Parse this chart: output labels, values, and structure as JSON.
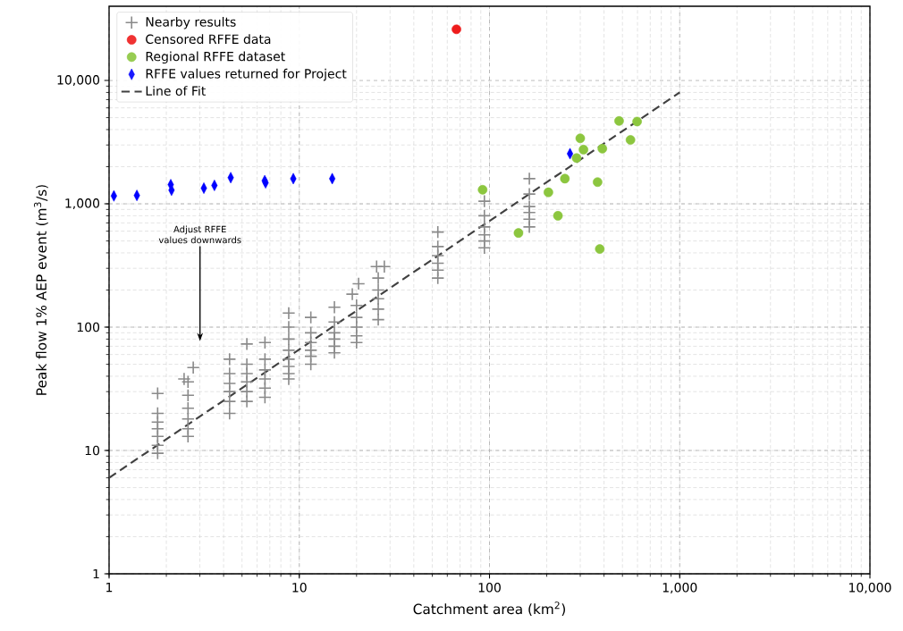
{
  "chart_data": {
    "type": "scatter",
    "xlabel": "Catchment area (km$^{2}$)",
    "ylabel": "Peak flow 1% AEP event (m$^{3}$/s)",
    "log": "xy",
    "grid": true,
    "legend": "top left",
    "xlim": [
      1,
      10000
    ],
    "ylim": [
      1,
      40000
    ],
    "xticks": [
      {
        "value": 1,
        "label": "1"
      },
      {
        "value": 10,
        "label": "10"
      },
      {
        "value": 100,
        "label": "100"
      },
      {
        "value": 1000,
        "label": "1,000"
      },
      {
        "value": 10000,
        "label": "10,000"
      }
    ],
    "yticks": [
      {
        "value": 1,
        "label": "1"
      },
      {
        "value": 10,
        "label": "10"
      },
      {
        "value": 100,
        "label": "100"
      },
      {
        "value": 1000,
        "label": "1,000"
      },
      {
        "value": 10000,
        "label": "10,000"
      }
    ],
    "annotations": [
      "Adjust RFFE values downwards"
    ],
    "series": [
      {
        "name": "Nearby results",
        "color": "#8a8a8a",
        "marker": "cross",
        "x": [
          1.8,
          1.8,
          1.8,
          1.8,
          1.8,
          1.8,
          1.8,
          2.77,
          2.48,
          2.6,
          2.6,
          2.6,
          2.6,
          2.6,
          2.6,
          4.3,
          4.3,
          4.3,
          4.3,
          4.3,
          4.3,
          5.3,
          5.3,
          5.3,
          5.3,
          5.3,
          5.3,
          6.6,
          6.6,
          6.6,
          6.6,
          6.6,
          6.6,
          8.8,
          8.8,
          8.8,
          8.8,
          8.8,
          8.8,
          8.8,
          8.8,
          11.5,
          11.5,
          11.5,
          11.5,
          11.5,
          11.5,
          15.3,
          15.3,
          15.3,
          15.3,
          15.3,
          15.3,
          19,
          20.5,
          20,
          20,
          20,
          20,
          20,
          25.5,
          28,
          26,
          26,
          26,
          26,
          26,
          53.5,
          53.5,
          53.5,
          53.5,
          53.5,
          53.5,
          94,
          94,
          94,
          94,
          94,
          94,
          162,
          162,
          162,
          162,
          162,
          162
        ],
        "values": [
          29,
          20,
          17,
          15,
          13,
          11,
          9.5,
          47,
          38,
          36,
          28,
          22,
          18,
          15,
          13,
          55,
          42,
          35,
          30,
          25,
          20,
          73,
          50,
          42,
          36,
          30,
          25,
          75,
          55,
          45,
          38,
          32,
          27,
          130,
          100,
          80,
          65,
          55,
          48,
          42,
          38,
          120,
          90,
          75,
          65,
          58,
          50,
          145,
          110,
          90,
          80,
          70,
          62,
          185,
          225,
          150,
          120,
          100,
          85,
          75,
          310,
          310,
          250,
          200,
          170,
          140,
          115,
          590,
          450,
          380,
          330,
          290,
          250,
          1050,
          800,
          650,
          560,
          500,
          440,
          1600,
          1200,
          950,
          850,
          750,
          650
        ]
      },
      {
        "name": "Censored RFFE data",
        "color": "#ee1c1c",
        "marker": "circle",
        "x": [
          67
        ],
        "values": [
          26000
        ]
      },
      {
        "name": "Regional RFFE dataset",
        "color": "#8cc63f",
        "marker": "circle",
        "x": [
          92,
          142,
          204,
          229,
          249,
          287,
          300,
          312,
          370,
          380,
          392,
          480,
          551,
          597
        ],
        "values": [
          1300,
          580,
          1240,
          800,
          1600,
          2350,
          3400,
          2750,
          1500,
          430,
          2800,
          4700,
          3300,
          4650
        ]
      },
      {
        "name": "RFFE values returned for Project",
        "color": "#0000ff",
        "marker": "diamond",
        "x": [
          1.06,
          1.4,
          2.11,
          2.13,
          3.15,
          3.58,
          4.36,
          6.58,
          6.65,
          9.3,
          14.9,
          265
        ],
        "values": [
          1160,
          1170,
          1430,
          1290,
          1340,
          1410,
          1630,
          1540,
          1480,
          1600,
          1600,
          2550
        ]
      },
      {
        "name": "Line of Fit",
        "type": "line",
        "color": "#404040",
        "line_style": "dashed",
        "marker": "none",
        "x": [
          1,
          1000
        ],
        "values": [
          6,
          8000
        ]
      }
    ]
  }
}
